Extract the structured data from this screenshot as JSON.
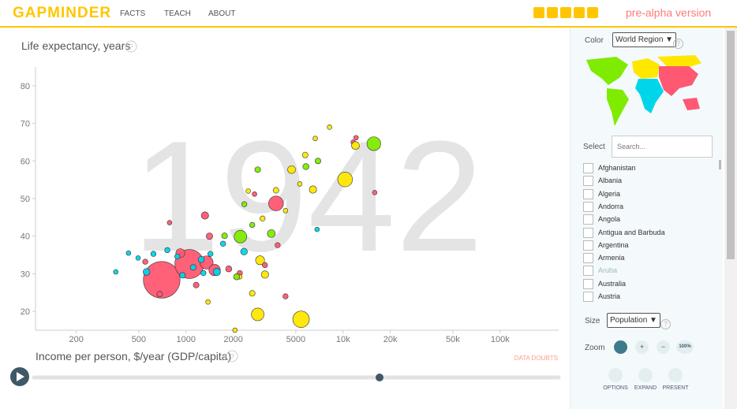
{
  "header": {
    "logo": "GAPMINDER",
    "nav": [
      "FACTS",
      "TEACH",
      "ABOUT"
    ],
    "version": "pre-alpha version"
  },
  "chart_data": {
    "type": "bubble",
    "year": "1942",
    "y_label": "Life expectancy, years",
    "x_label": "Income per person, $/year (GDP/capita)",
    "data_doubts": "DATA DOUBTS",
    "x_scale": "log",
    "xlim": [
      110,
      236000
    ],
    "ylim": [
      15,
      85
    ],
    "xticks": [
      200,
      500,
      1000,
      2000,
      5000,
      {
        "value": 10000,
        "label": "10k"
      },
      {
        "value": 20000,
        "label": "20k"
      },
      {
        "value": 50000,
        "label": "50k"
      },
      {
        "value": 100000,
        "label": "100k"
      }
    ],
    "yticks": [
      20,
      30,
      40,
      50,
      60,
      70,
      80
    ],
    "series": [
      {
        "color": "#ff5872",
        "x": [
          700,
          1050,
          3740,
          11600,
          1350,
          1520,
          920,
          1320,
          1410,
          1870,
          4300,
          680,
          15900,
          12100,
          3180,
          2200,
          1160,
          3830,
          2730,
          785,
          550
        ],
        "values": [
          28.4,
          32.6,
          48.7,
          65,
          33,
          31,
          35.5,
          45.5,
          40,
          31.3,
          24,
          24.6,
          51.6,
          66.2,
          32.3,
          30.2,
          27,
          37.6,
          51.2,
          43.6,
          33.2
        ],
        "sizes": [
          500,
          300,
          60,
          1,
          45,
          30,
          15,
          8,
          5,
          4,
          2,
          3,
          1,
          1,
          2,
          2,
          3,
          2,
          1,
          1,
          2
        ]
      },
      {
        "color": "#00d5e9",
        "x": [
          560,
          2340,
          1570,
          1250,
          6830,
          357,
          430,
          495,
          620,
          880,
          1110,
          1430,
          1720,
          950,
          760,
          1290
        ],
        "values": [
          30.5,
          35.9,
          30.5,
          33.8,
          41.8,
          30.5,
          35.5,
          34.2,
          35.3,
          34.6,
          31.7,
          35.3,
          38,
          29.6,
          36.3,
          30.2
        ],
        "sizes": [
          6,
          6,
          8,
          4,
          1,
          1,
          1,
          1,
          2,
          2,
          3,
          2,
          2,
          3,
          2,
          2
        ]
      },
      {
        "color": "#ffe700",
        "x": [
          5400,
          10300,
          2860,
          4700,
          6430,
          12000,
          2960,
          3180,
          2640,
          5740,
          8200,
          6650,
          3740,
          2490,
          3070,
          4300,
          2200,
          1380,
          5300,
          2050
        ],
        "values": [
          17.9,
          55.1,
          19.2,
          57.7,
          52.4,
          64.1,
          33.6,
          29.8,
          24.8,
          61.6,
          69,
          66,
          52.2,
          52,
          44.7,
          46.8,
          29.2,
          22.5,
          53.9,
          15
        ],
        "sizes": [
          80,
          60,
          40,
          10,
          8,
          10,
          15,
          8,
          3,
          3,
          1,
          1,
          3,
          1,
          2,
          1,
          1,
          1,
          1,
          1
        ]
      },
      {
        "color": "#7feb00",
        "x": [
          15700,
          2220,
          3490,
          6920,
          2860,
          2100,
          5800,
          2640,
          1760,
          2350
        ],
        "values": [
          64.6,
          39.9,
          40.7,
          60,
          57.7,
          29.2,
          58.5,
          43,
          40.1,
          48.5
        ],
        "sizes": [
          50,
          40,
          10,
          3,
          3,
          4,
          4,
          2,
          3,
          2
        ]
      }
    ]
  },
  "sidebar": {
    "color_label": "Color",
    "color_choice": "World Region",
    "select_label": "Select",
    "search_placeholder": "Search...",
    "countries": [
      "Afghanistan",
      "Albania",
      "Algeria",
      "Andorra",
      "Angola",
      "Antigua and Barbuda",
      "Argentina",
      "Armenia",
      "Aruba",
      "Australia",
      "Austria"
    ],
    "size_label": "Size",
    "size_choice": "Population",
    "zoom_label": "Zoom",
    "zoom_full": "100%",
    "buttons": [
      "OPTIONS",
      "EXPAND",
      "PRESENT"
    ]
  }
}
